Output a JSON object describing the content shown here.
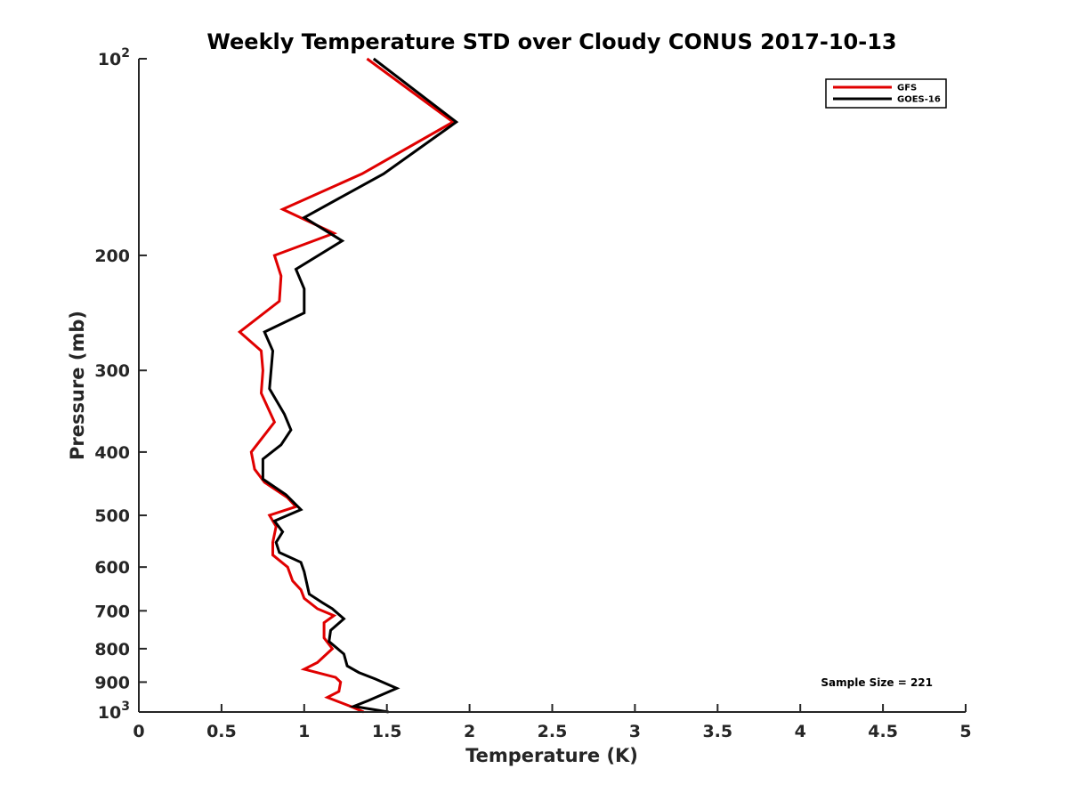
{
  "chart_data": {
    "type": "line",
    "title": "Weekly Temperature STD over Cloudy CONUS 2017-10-13",
    "xlabel": "Temperature (K)",
    "ylabel": "Pressure (mb)",
    "xlim": [
      0,
      5
    ],
    "ylim": [
      100,
      1000
    ],
    "y_scale": "log",
    "y_reversed": true,
    "grid": false,
    "legend_position": "top-right",
    "x_ticks": [
      0,
      0.5,
      1,
      1.5,
      2,
      2.5,
      3,
      3.5,
      4,
      4.5,
      5
    ],
    "x_tick_labels": [
      "0",
      "0.5",
      "1",
      "1.5",
      "2",
      "2.5",
      "3",
      "3.5",
      "4",
      "4.5",
      "5"
    ],
    "y_ticks": [
      100,
      200,
      300,
      400,
      500,
      600,
      700,
      800,
      900,
      1000
    ],
    "y_tick_labels": [
      {
        "base": "10",
        "exp": "2"
      },
      {
        "base": "200"
      },
      {
        "base": "300"
      },
      {
        "base": "400"
      },
      {
        "base": "500"
      },
      {
        "base": "600"
      },
      {
        "base": "700"
      },
      {
        "base": "800"
      },
      {
        "base": "900"
      },
      {
        "base": "10",
        "exp": "3"
      }
    ],
    "annotation": "Sample Size = 221",
    "series": [
      {
        "name": "GFS",
        "color": "#e00000",
        "points": [
          [
            1.38,
            100
          ],
          [
            1.9,
            125
          ],
          [
            1.35,
            150
          ],
          [
            0.87,
            170
          ],
          [
            1.18,
            185
          ],
          [
            0.82,
            200
          ],
          [
            0.86,
            215
          ],
          [
            0.85,
            235
          ],
          [
            0.61,
            262
          ],
          [
            0.74,
            280
          ],
          [
            0.75,
            300
          ],
          [
            0.74,
            325
          ],
          [
            0.82,
            360
          ],
          [
            0.68,
            400
          ],
          [
            0.7,
            425
          ],
          [
            0.76,
            445
          ],
          [
            0.9,
            470
          ],
          [
            0.95,
            485
          ],
          [
            0.79,
            500
          ],
          [
            0.83,
            520
          ],
          [
            0.81,
            550
          ],
          [
            0.81,
            575
          ],
          [
            0.9,
            600
          ],
          [
            0.93,
            630
          ],
          [
            0.98,
            650
          ],
          [
            1.0,
            670
          ],
          [
            1.08,
            695
          ],
          [
            1.18,
            712
          ],
          [
            1.12,
            730
          ],
          [
            1.12,
            770
          ],
          [
            1.17,
            800
          ],
          [
            1.08,
            840
          ],
          [
            1.0,
            860
          ],
          [
            1.19,
            885
          ],
          [
            1.22,
            900
          ],
          [
            1.21,
            930
          ],
          [
            1.14,
            950
          ],
          [
            1.21,
            965
          ],
          [
            1.28,
            980
          ],
          [
            1.36,
            1000
          ]
        ]
      },
      {
        "name": "GOES-16",
        "color": "#000000",
        "points": [
          [
            1.42,
            100
          ],
          [
            1.92,
            125
          ],
          [
            1.48,
            150
          ],
          [
            1.0,
            175
          ],
          [
            1.23,
            190
          ],
          [
            0.95,
            210
          ],
          [
            1.0,
            225
          ],
          [
            1.0,
            245
          ],
          [
            0.76,
            262
          ],
          [
            0.81,
            280
          ],
          [
            0.79,
            320
          ],
          [
            0.88,
            350
          ],
          [
            0.92,
            370
          ],
          [
            0.86,
            390
          ],
          [
            0.75,
            410
          ],
          [
            0.75,
            440
          ],
          [
            0.89,
            465
          ],
          [
            0.98,
            490
          ],
          [
            0.82,
            510
          ],
          [
            0.87,
            530
          ],
          [
            0.83,
            550
          ],
          [
            0.85,
            570
          ],
          [
            0.98,
            590
          ],
          [
            1.0,
            610
          ],
          [
            1.03,
            660
          ],
          [
            1.11,
            680
          ],
          [
            1.17,
            695
          ],
          [
            1.24,
            720
          ],
          [
            1.16,
            750
          ],
          [
            1.15,
            780
          ],
          [
            1.24,
            815
          ],
          [
            1.26,
            850
          ],
          [
            1.33,
            870
          ],
          [
            1.43,
            890
          ],
          [
            1.56,
            920
          ],
          [
            1.39,
            960
          ],
          [
            1.3,
            980
          ],
          [
            1.51,
            1000
          ]
        ]
      }
    ]
  }
}
